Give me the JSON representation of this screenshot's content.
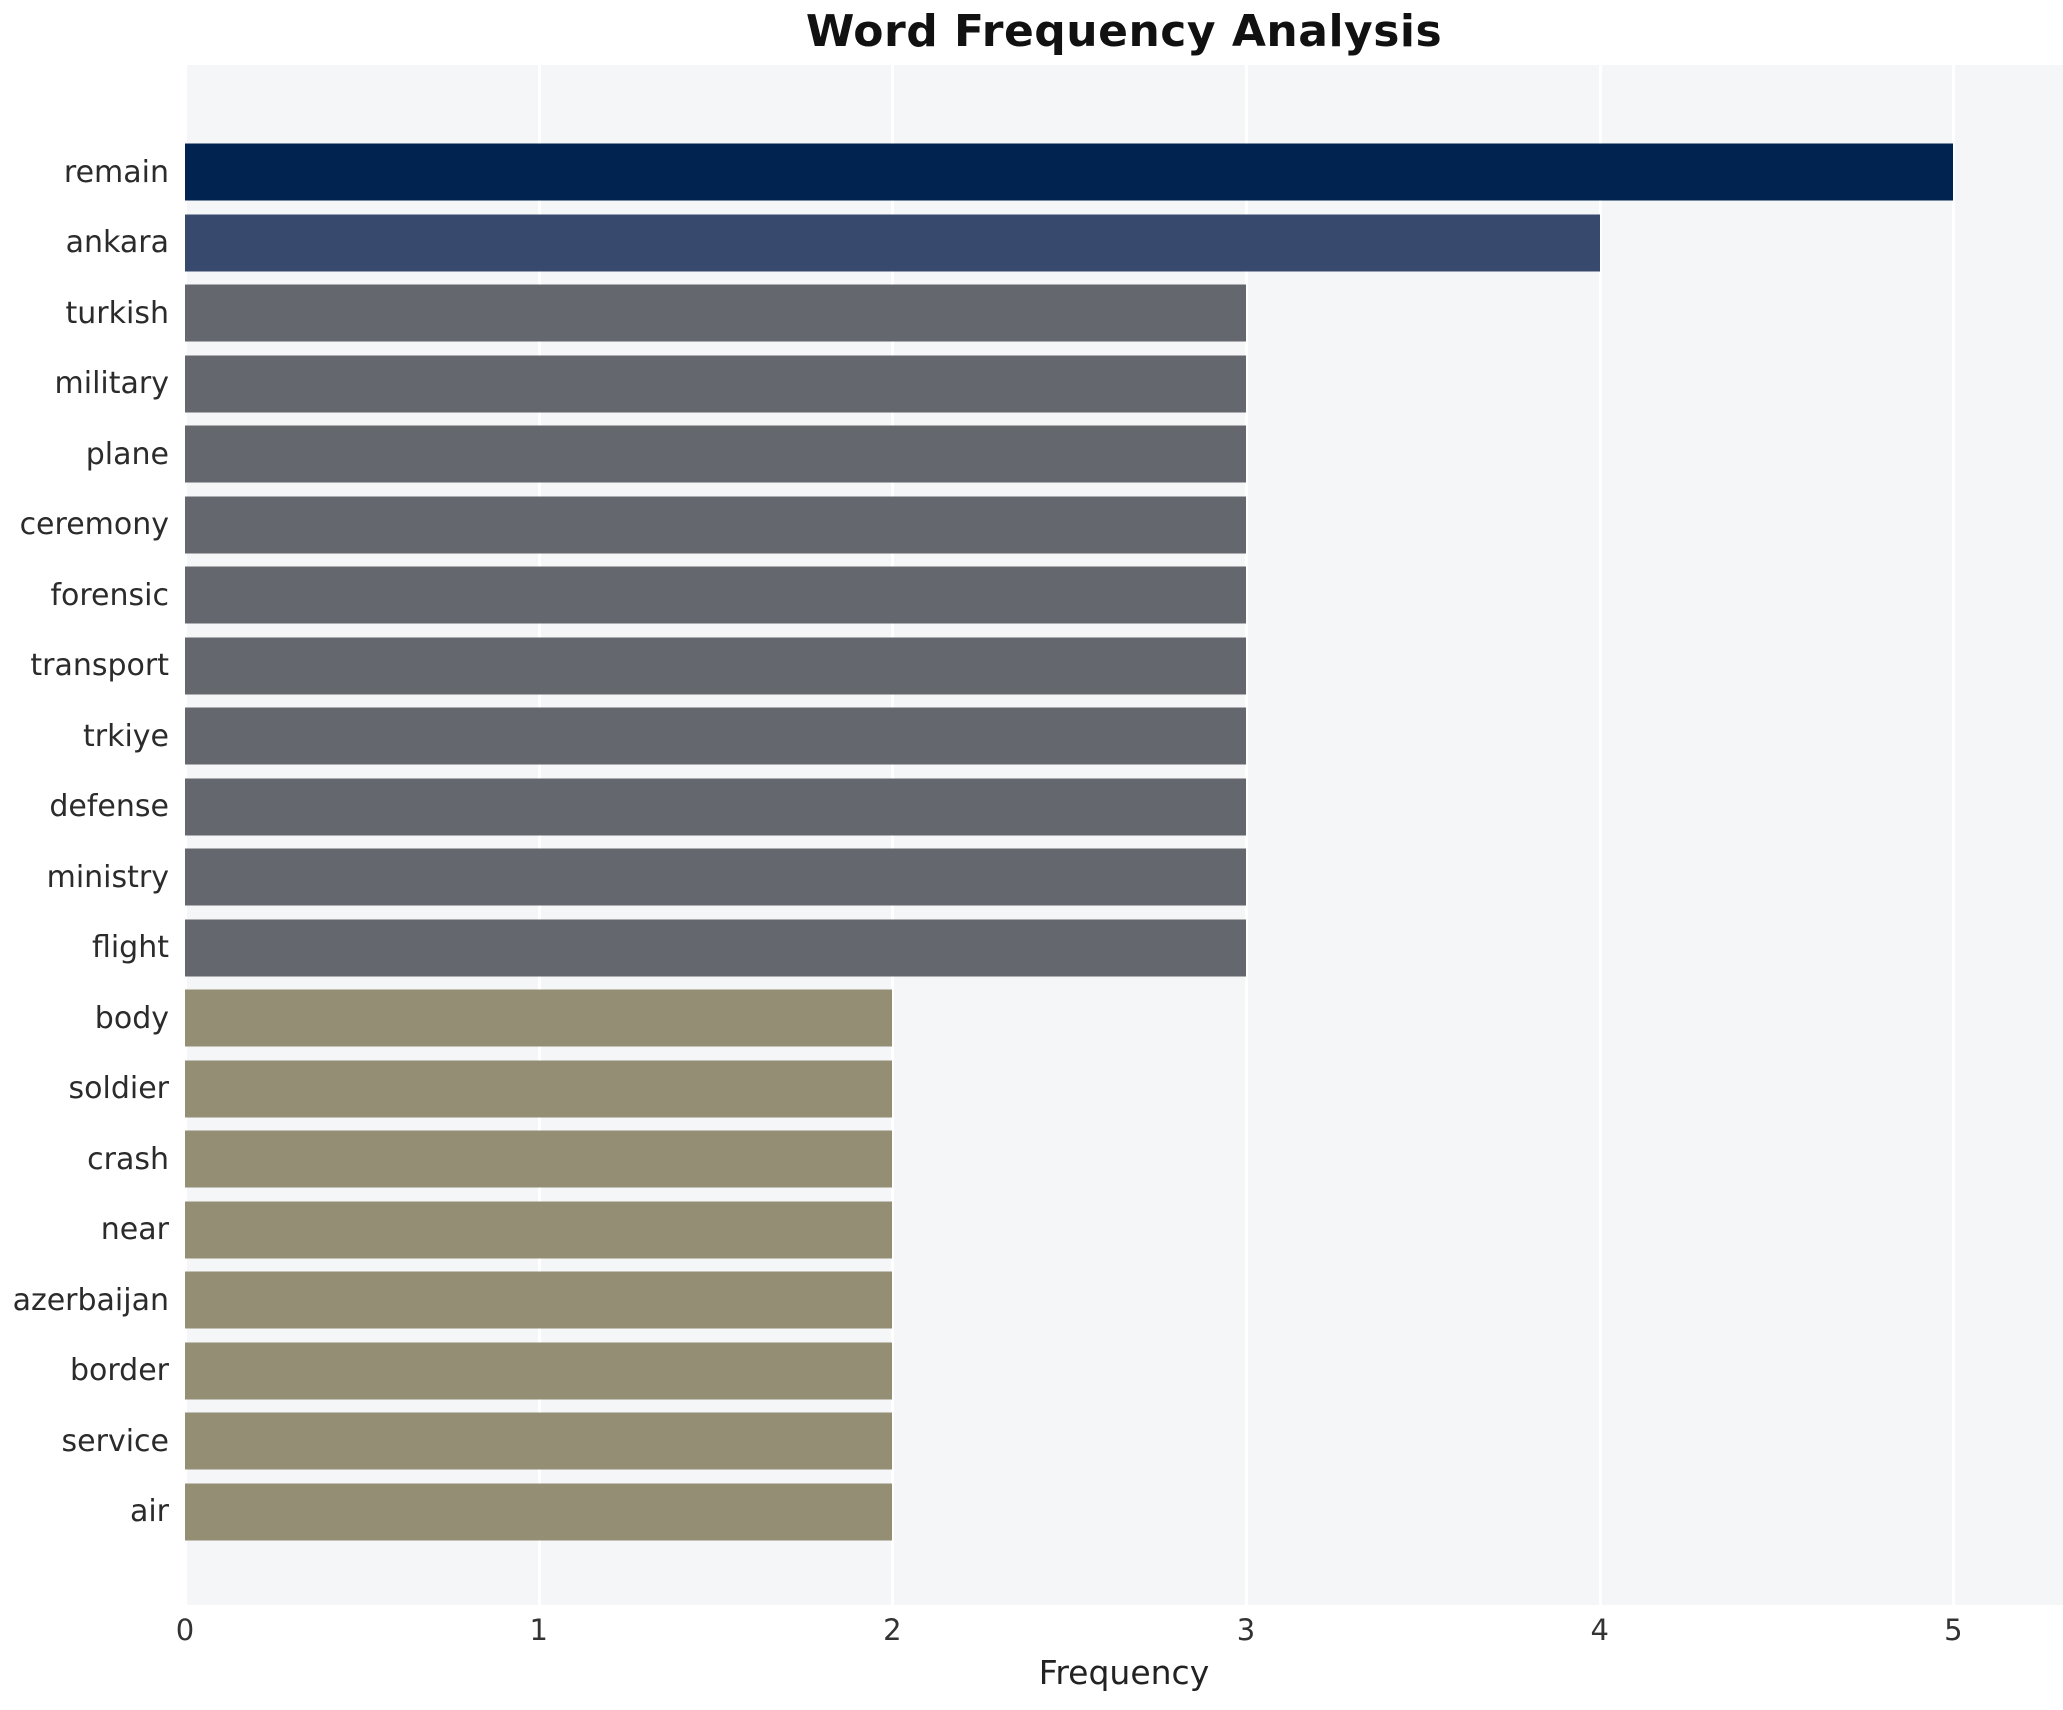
{
  "title": "Word Frequency Analysis",
  "xlabel": "Frequency",
  "chart_data": {
    "type": "bar",
    "orientation": "horizontal",
    "title": "Word Frequency Analysis",
    "xlabel": "Frequency",
    "ylabel": "",
    "categories": [
      "remain",
      "ankara",
      "turkish",
      "military",
      "plane",
      "ceremony",
      "forensic",
      "transport",
      "trkiye",
      "defense",
      "ministry",
      "flight",
      "body",
      "soldier",
      "crash",
      "near",
      "azerbaijan",
      "border",
      "service",
      "air"
    ],
    "values": [
      5,
      4,
      3,
      3,
      3,
      3,
      3,
      3,
      3,
      3,
      3,
      3,
      2,
      2,
      2,
      2,
      2,
      2,
      2,
      2
    ],
    "xticks": [
      "0",
      "1",
      "2",
      "3",
      "4",
      "5"
    ],
    "xlim": [
      0,
      5.31
    ],
    "grid": true,
    "gridline_color": "#ffffff",
    "legend_position": "none",
    "plot_background": "#f5f6f7",
    "page_background": "#ffffff",
    "color_by_value": {
      "5": "#00234f",
      "4": "#374a6e",
      "3": "#65676e",
      "2": "#948e75"
    }
  }
}
